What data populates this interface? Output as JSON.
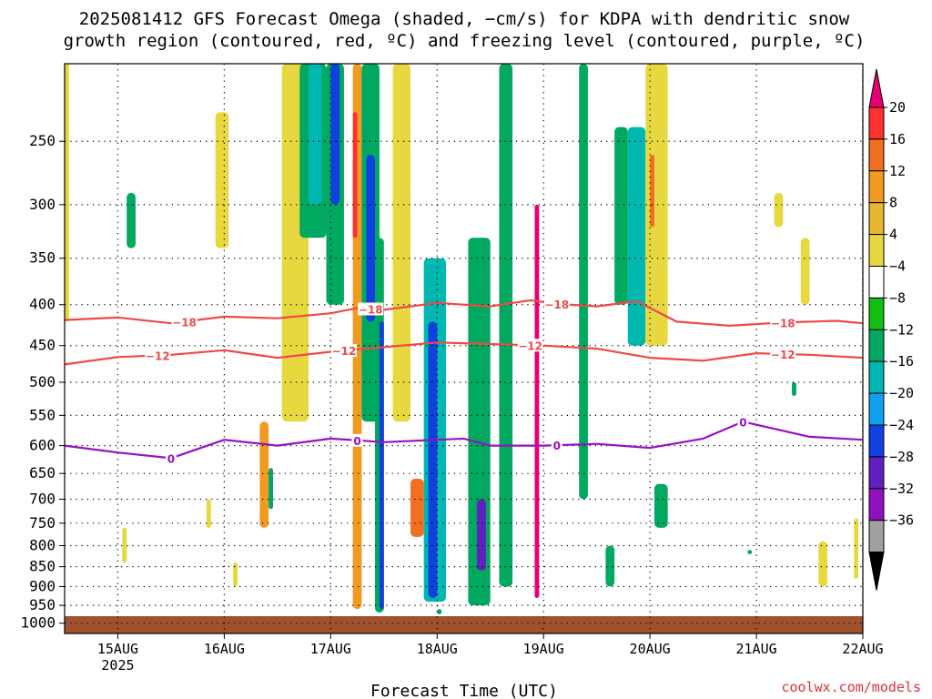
{
  "chart_data": {
    "type": "heatmap",
    "title_line1": "2025081412 GFS Forecast Omega (shaded, −cm/s) for KDPA with dendritic snow",
    "title_line2": "growth region (contoured, red, ºC) and freezing level (contoured, purple, ºC)",
    "xlabel": "Forecast Time (UTC)",
    "credit": "coolwx.com/models",
    "y_axis": {
      "scale": "log-pressure",
      "inverted": true,
      "range_hPa": [
        1030,
        200
      ],
      "ticks": [
        250,
        300,
        350,
        400,
        450,
        500,
        550,
        600,
        650,
        700,
        750,
        800,
        850,
        900,
        950,
        1000
      ]
    },
    "x_axis": {
      "range": [
        "2025-08-14T12",
        "2025-08-22T00"
      ],
      "ticks": [
        {
          "label": "15AUG",
          "sublabel": "2025",
          "time": "2025-08-15T00"
        },
        {
          "label": "16AUG",
          "sublabel": "",
          "time": "2025-08-16T00"
        },
        {
          "label": "17AUG",
          "sublabel": "",
          "time": "2025-08-17T00"
        },
        {
          "label": "18AUG",
          "sublabel": "",
          "time": "2025-08-18T00"
        },
        {
          "label": "19AUG",
          "sublabel": "",
          "time": "2025-08-19T00"
        },
        {
          "label": "20AUG",
          "sublabel": "",
          "time": "2025-08-20T00"
        },
        {
          "label": "21AUG",
          "sublabel": "",
          "time": "2025-08-21T00"
        },
        {
          "label": "22AUG",
          "sublabel": "",
          "time": "2025-08-22T00"
        }
      ]
    },
    "grid": true,
    "colorbar": {
      "position": "right",
      "labels": [
        "20",
        "16",
        "12",
        "8",
        "4",
        "−4",
        "−8",
        "−12",
        "−16",
        "−20",
        "−24",
        "−28",
        "−32",
        "−36"
      ],
      "colors": [
        "#e60073",
        "#ff3030",
        "#f07020",
        "#f09a20",
        "#e6b830",
        "#e8d840",
        "#ffffff",
        "#10c010",
        "#00a860",
        "#00b8b0",
        "#10a0f0",
        "#1040e0",
        "#6020c0",
        "#9010c0",
        "#a0a0a0",
        "#000000"
      ]
    },
    "surface_band": {
      "top_hPa": 980,
      "color": "#a0522d"
    },
    "contours": [
      {
        "level": -18,
        "color": "#f04848",
        "labels_at": [
          "2025-08-15T15",
          "2025-08-17T09",
          "2025-08-19T03",
          "2025-08-21T06"
        ],
        "points": [
          [
            "2025-08-14T12",
            418
          ],
          [
            "2025-08-15T00",
            415
          ],
          [
            "2025-08-15T12",
            422
          ],
          [
            "2025-08-16T00",
            414
          ],
          [
            "2025-08-16T12",
            416
          ],
          [
            "2025-08-17T00",
            410
          ],
          [
            "2025-08-17T06",
            404
          ],
          [
            "2025-08-17T12",
            406
          ],
          [
            "2025-08-18T00",
            398
          ],
          [
            "2025-08-18T12",
            402
          ],
          [
            "2025-08-18T21",
            395
          ],
          [
            "2025-08-19T03",
            399
          ],
          [
            "2025-08-19T12",
            402
          ],
          [
            "2025-08-19T21",
            396
          ],
          [
            "2025-08-20T06",
            420
          ],
          [
            "2025-08-20T18",
            425
          ],
          [
            "2025-08-21T06",
            421
          ],
          [
            "2025-08-21T18",
            419
          ],
          [
            "2025-08-22T00",
            422
          ]
        ]
      },
      {
        "level": -12,
        "color": "#f04848",
        "labels_at": [
          "2025-08-15T09",
          "2025-08-17T03",
          "2025-08-18T21",
          "2025-08-21T06"
        ],
        "points": [
          [
            "2025-08-14T12",
            475
          ],
          [
            "2025-08-15T00",
            465
          ],
          [
            "2025-08-15T12",
            462
          ],
          [
            "2025-08-16T00",
            456
          ],
          [
            "2025-08-16T12",
            466
          ],
          [
            "2025-08-17T00",
            458
          ],
          [
            "2025-08-17T12",
            452
          ],
          [
            "2025-08-18T00",
            446
          ],
          [
            "2025-08-18T12",
            448
          ],
          [
            "2025-08-19T00",
            450
          ],
          [
            "2025-08-19T12",
            454
          ],
          [
            "2025-08-20T00",
            466
          ],
          [
            "2025-08-20T12",
            470
          ],
          [
            "2025-08-21T00",
            460
          ],
          [
            "2025-08-21T12",
            462
          ],
          [
            "2025-08-22T00",
            466
          ]
        ]
      },
      {
        "level": 0,
        "color": "#9a10c0",
        "labels_at": [
          "2025-08-15T12",
          "2025-08-17T06",
          "2025-08-19T03",
          "2025-08-20T21"
        ],
        "points": [
          [
            "2025-08-14T12",
            600
          ],
          [
            "2025-08-15T00",
            612
          ],
          [
            "2025-08-15T12",
            622
          ],
          [
            "2025-08-16T00",
            590
          ],
          [
            "2025-08-16T12",
            600
          ],
          [
            "2025-08-17T00",
            588
          ],
          [
            "2025-08-17T12",
            594
          ],
          [
            "2025-08-18T00",
            590
          ],
          [
            "2025-08-18T06",
            588
          ],
          [
            "2025-08-18T12",
            600
          ],
          [
            "2025-08-19T00",
            600
          ],
          [
            "2025-08-19T12",
            597
          ],
          [
            "2025-08-20T00",
            604
          ],
          [
            "2025-08-20T12",
            588
          ],
          [
            "2025-08-20T21",
            560
          ],
          [
            "2025-08-21T12",
            585
          ],
          [
            "2025-08-22T00",
            590
          ]
        ]
      }
    ],
    "shaded_features": [
      {
        "t0": "2025-08-16T13",
        "t1": "2025-08-16T19",
        "p_top": 200,
        "p_bot": 560,
        "value": 4
      },
      {
        "t0": "2025-08-16T17",
        "t1": "2025-08-16T23",
        "p_top": 200,
        "p_bot": 330,
        "value": -8
      },
      {
        "t0": "2025-08-16T19",
        "t1": "2025-08-16T22",
        "p_top": 200,
        "p_bot": 300,
        "value": -12
      },
      {
        "t0": "2025-08-16T23",
        "t1": "2025-08-17T03",
        "p_top": 200,
        "p_bot": 400,
        "value": -8
      },
      {
        "t0": "2025-08-17T00",
        "t1": "2025-08-17T02",
        "p_top": 200,
        "p_bot": 300,
        "value": -20
      },
      {
        "t0": "2025-08-17T05",
        "t1": "2025-08-17T07",
        "p_top": 200,
        "p_bot": 960,
        "value": 8
      },
      {
        "t0": "2025-08-17T05",
        "t1": "2025-08-17T06",
        "p_top": 230,
        "p_bot": 330,
        "value": 16
      },
      {
        "t0": "2025-08-17T07",
        "t1": "2025-08-17T11",
        "p_top": 200,
        "p_bot": 560,
        "value": -8
      },
      {
        "t0": "2025-08-17T08",
        "t1": "2025-08-17T10",
        "p_top": 260,
        "p_bot": 420,
        "value": -20
      },
      {
        "t0": "2025-08-17T10",
        "t1": "2025-08-17T12",
        "p_top": 330,
        "p_bot": 970,
        "value": -8
      },
      {
        "t0": "2025-08-17T11",
        "t1": "2025-08-17T12",
        "p_top": 420,
        "p_bot": 960,
        "value": -20
      },
      {
        "t0": "2025-08-17T14",
        "t1": "2025-08-17T18",
        "p_top": 200,
        "p_bot": 560,
        "value": 4
      },
      {
        "t0": "2025-08-17T21",
        "t1": "2025-08-18T02",
        "p_top": 350,
        "p_bot": 940,
        "value": -12
      },
      {
        "t0": "2025-08-17T22",
        "t1": "2025-08-18T00",
        "p_top": 420,
        "p_bot": 930,
        "value": -20
      },
      {
        "t0": "2025-08-17T18",
        "t1": "2025-08-17T21",
        "p_top": 660,
        "p_bot": 780,
        "value": 12
      },
      {
        "t0": "2025-08-18T07",
        "t1": "2025-08-18T12",
        "p_top": 330,
        "p_bot": 950,
        "value": -8
      },
      {
        "t0": "2025-08-18T09",
        "t1": "2025-08-18T11",
        "p_top": 700,
        "p_bot": 860,
        "value": -24
      },
      {
        "t0": "2025-08-18T14",
        "t1": "2025-08-18T17",
        "p_top": 200,
        "p_bot": 900,
        "value": -8
      },
      {
        "t0": "2025-08-18T22",
        "t1": "2025-08-18T23",
        "p_top": 300,
        "p_bot": 930,
        "value": 20
      },
      {
        "t0": "2025-08-19T08",
        "t1": "2025-08-19T10",
        "p_top": 200,
        "p_bot": 700,
        "value": -8
      },
      {
        "t0": "2025-08-19T19",
        "t1": "2025-08-19T23",
        "p_top": 240,
        "p_bot": 450,
        "value": -12
      },
      {
        "t0": "2025-08-19T16",
        "t1": "2025-08-19T19",
        "p_top": 240,
        "p_bot": 400,
        "value": -8
      },
      {
        "t0": "2025-08-19T23",
        "t1": "2025-08-20T04",
        "p_top": 200,
        "p_bot": 450,
        "value": 4
      },
      {
        "t0": "2025-08-20T00",
        "t1": "2025-08-20T01",
        "p_top": 260,
        "p_bot": 320,
        "value": 12
      },
      {
        "t0": "2025-08-20T01",
        "t1": "2025-08-20T04",
        "p_top": 670,
        "p_bot": 760,
        "value": -8
      },
      {
        "t0": "2025-08-15T02",
        "t1": "2025-08-15T04",
        "p_top": 290,
        "p_bot": 340,
        "value": -8
      },
      {
        "t0": "2025-08-15T22",
        "t1": "2025-08-16T01",
        "p_top": 230,
        "p_bot": 340,
        "value": 4
      },
      {
        "t0": "2025-08-14T12",
        "t1": "2025-08-14T13",
        "p_top": 200,
        "p_bot": 420,
        "value": 4
      },
      {
        "t0": "2025-08-21T14",
        "t1": "2025-08-21T16",
        "p_top": 790,
        "p_bot": 900,
        "value": 4
      },
      {
        "t0": "2025-08-21T22",
        "t1": "2025-08-21T23",
        "p_top": 740,
        "p_bot": 880,
        "value": 4
      },
      {
        "t0": "2025-08-21T10",
        "t1": "2025-08-21T12",
        "p_top": 330,
        "p_bot": 400,
        "value": 4
      },
      {
        "t0": "2025-08-21T08",
        "t1": "2025-08-21T09",
        "p_top": 500,
        "p_bot": 520,
        "value": -8
      },
      {
        "t0": "2025-08-21T04",
        "t1": "2025-08-21T06",
        "p_top": 290,
        "p_bot": 320,
        "value": 4
      },
      {
        "t0": "2025-08-20T22",
        "t1": "2025-08-20T23",
        "p_top": 810,
        "p_bot": 820,
        "value": -8
      },
      {
        "t0": "2025-08-19T14",
        "t1": "2025-08-19T16",
        "p_top": 800,
        "p_bot": 900,
        "value": -8
      },
      {
        "t0": "2025-08-18T00",
        "t1": "2025-08-18T01",
        "p_top": 960,
        "p_bot": 975,
        "value": -8
      },
      {
        "t0": "2025-08-16T02",
        "t1": "2025-08-16T03",
        "p_top": 840,
        "p_bot": 900,
        "value": 4
      },
      {
        "t0": "2025-08-15T20",
        "t1": "2025-08-15T21",
        "p_top": 700,
        "p_bot": 760,
        "value": 4
      },
      {
        "t0": "2025-08-16T08",
        "t1": "2025-08-16T10",
        "p_top": 560,
        "p_bot": 760,
        "value": 8
      },
      {
        "t0": "2025-08-16T10",
        "t1": "2025-08-16T11",
        "p_top": 640,
        "p_bot": 720,
        "value": -8
      },
      {
        "t0": "2025-08-15T01",
        "t1": "2025-08-15T02",
        "p_top": 760,
        "p_bot": 840,
        "value": 4
      }
    ]
  }
}
